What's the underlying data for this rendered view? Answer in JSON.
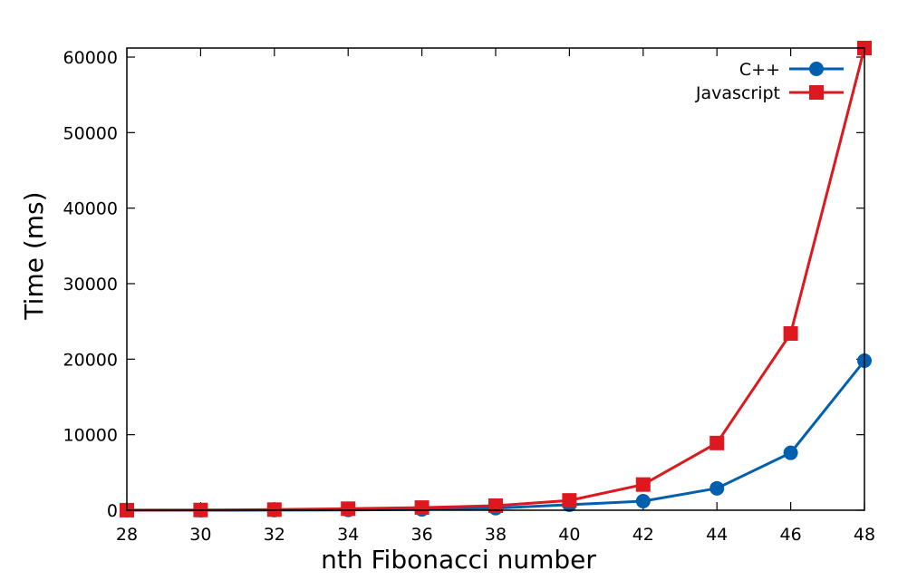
{
  "chart_data": {
    "type": "line",
    "title": "",
    "xlabel": "nth Fibonacci number",
    "ylabel": "Time (ms)",
    "xlim": [
      28,
      48
    ],
    "ylim": [
      0,
      61200
    ],
    "x_ticks": [
      28,
      30,
      32,
      34,
      36,
      38,
      40,
      42,
      44,
      46,
      48
    ],
    "y_ticks": [
      0,
      10000,
      20000,
      30000,
      40000,
      50000,
      60000
    ],
    "x_tick_labels": [
      "28",
      "30",
      "32",
      "34",
      "36",
      "38",
      "40",
      "42",
      "44",
      "46",
      "48"
    ],
    "y_tick_labels": [
      "0",
      "10000",
      "20000",
      "30000",
      "40000",
      "50000",
      "60000"
    ],
    "legend_position": "top-right",
    "grid": false,
    "x": [
      28,
      30,
      32,
      34,
      36,
      38,
      40,
      42,
      44,
      46,
      48
    ],
    "series": [
      {
        "name": "C++",
        "color": "#0060ad",
        "marker": "circle",
        "values": [
          2,
          6,
          15,
          40,
          105,
          280,
          730,
          1200,
          2900,
          7600,
          19800
        ]
      },
      {
        "name": "Javascript",
        "color": "#dd181f",
        "marker": "square",
        "values": [
          10,
          30,
          80,
          200,
          350,
          600,
          1300,
          3400,
          8900,
          23400,
          61200
        ]
      }
    ]
  }
}
